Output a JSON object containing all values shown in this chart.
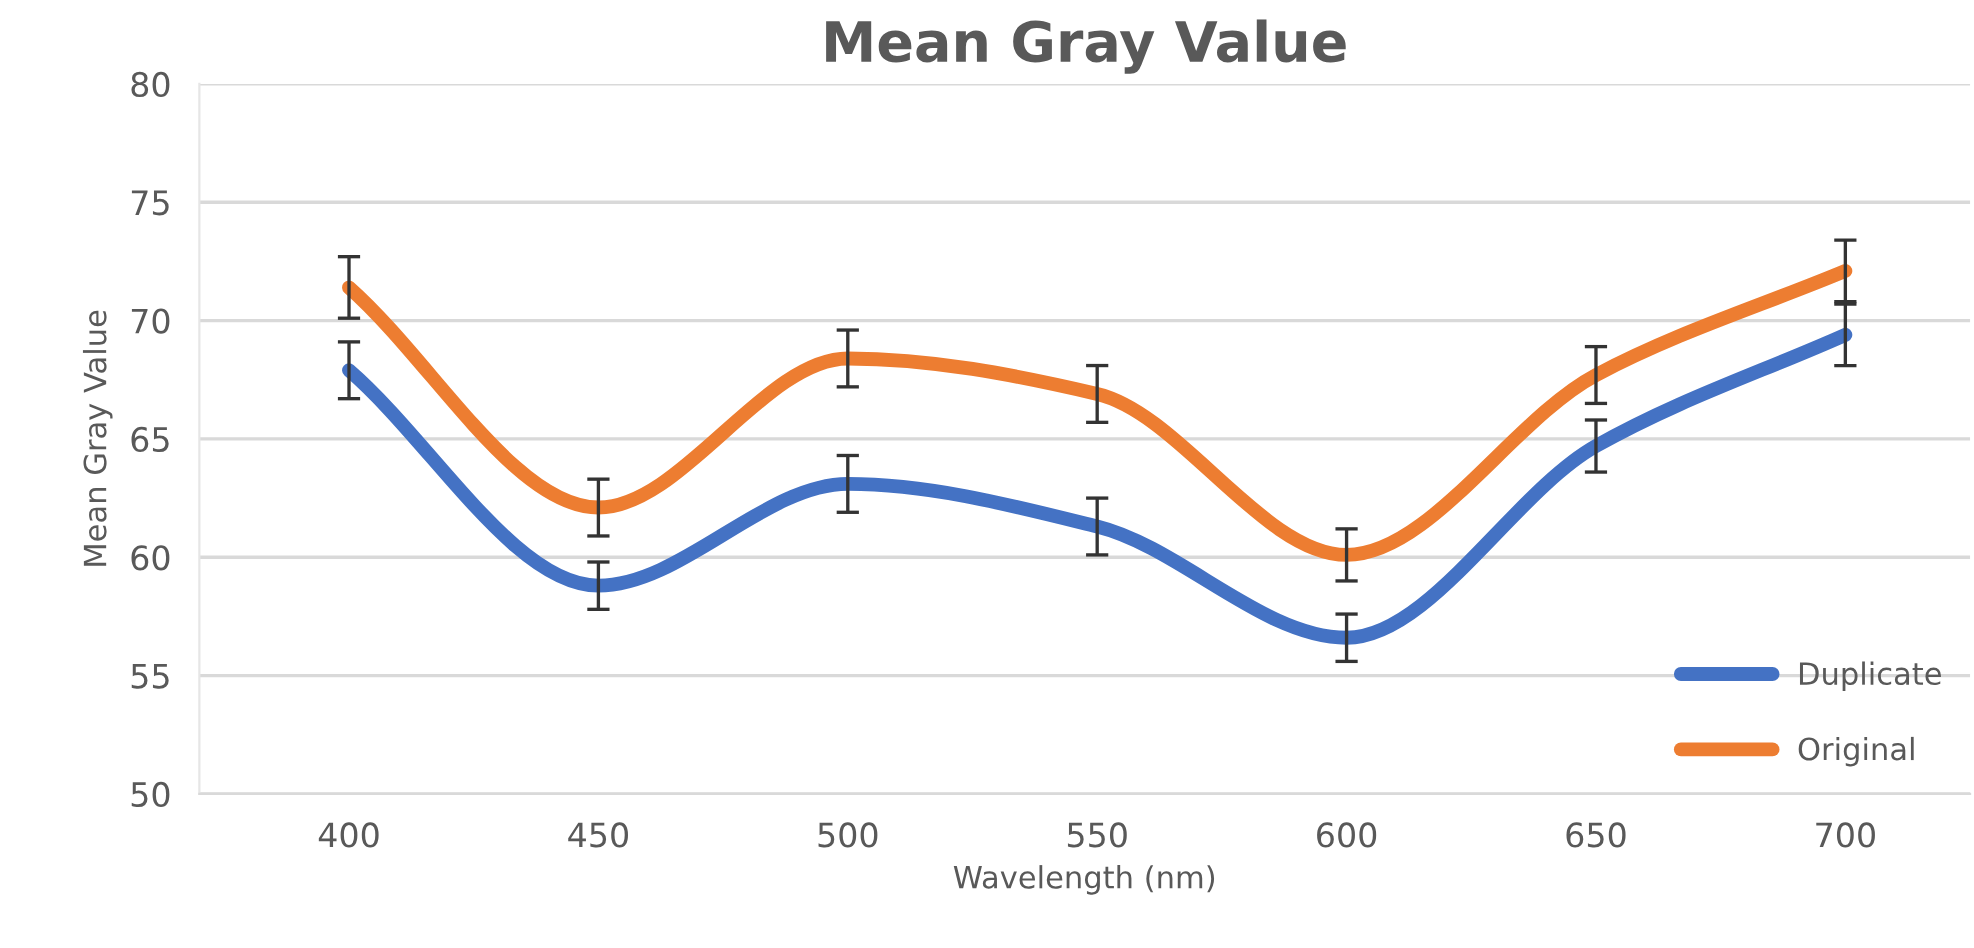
{
  "chart_data": {
    "type": "line",
    "title": "Mean Gray Value",
    "xlabel": "Wavelength (nm)",
    "ylabel": "Mean Gray Value",
    "x": [
      400,
      450,
      500,
      550,
      600,
      650,
      700
    ],
    "series": [
      {
        "name": "Duplicate",
        "color": "#4472c4",
        "values": [
          67.9,
          58.8,
          63.1,
          61.3,
          56.6,
          64.7,
          69.4
        ],
        "errors": [
          1.2,
          1.0,
          1.2,
          1.2,
          1.0,
          1.1,
          1.3
        ]
      },
      {
        "name": "Original",
        "color": "#ed7d31",
        "values": [
          71.4,
          62.1,
          68.4,
          66.9,
          60.1,
          67.7,
          72.1
        ],
        "errors": [
          1.3,
          1.2,
          1.2,
          1.2,
          1.1,
          1.2,
          1.3
        ]
      }
    ],
    "xlim": [
      370,
      725
    ],
    "xticks": [
      400,
      450,
      500,
      550,
      600,
      650,
      700
    ],
    "ylim": [
      50,
      80
    ],
    "yticks": [
      50,
      55,
      60,
      65,
      70,
      75,
      80
    ],
    "grid": "y",
    "legend": "bottom right",
    "marker": "none",
    "line_style": "solid"
  }
}
